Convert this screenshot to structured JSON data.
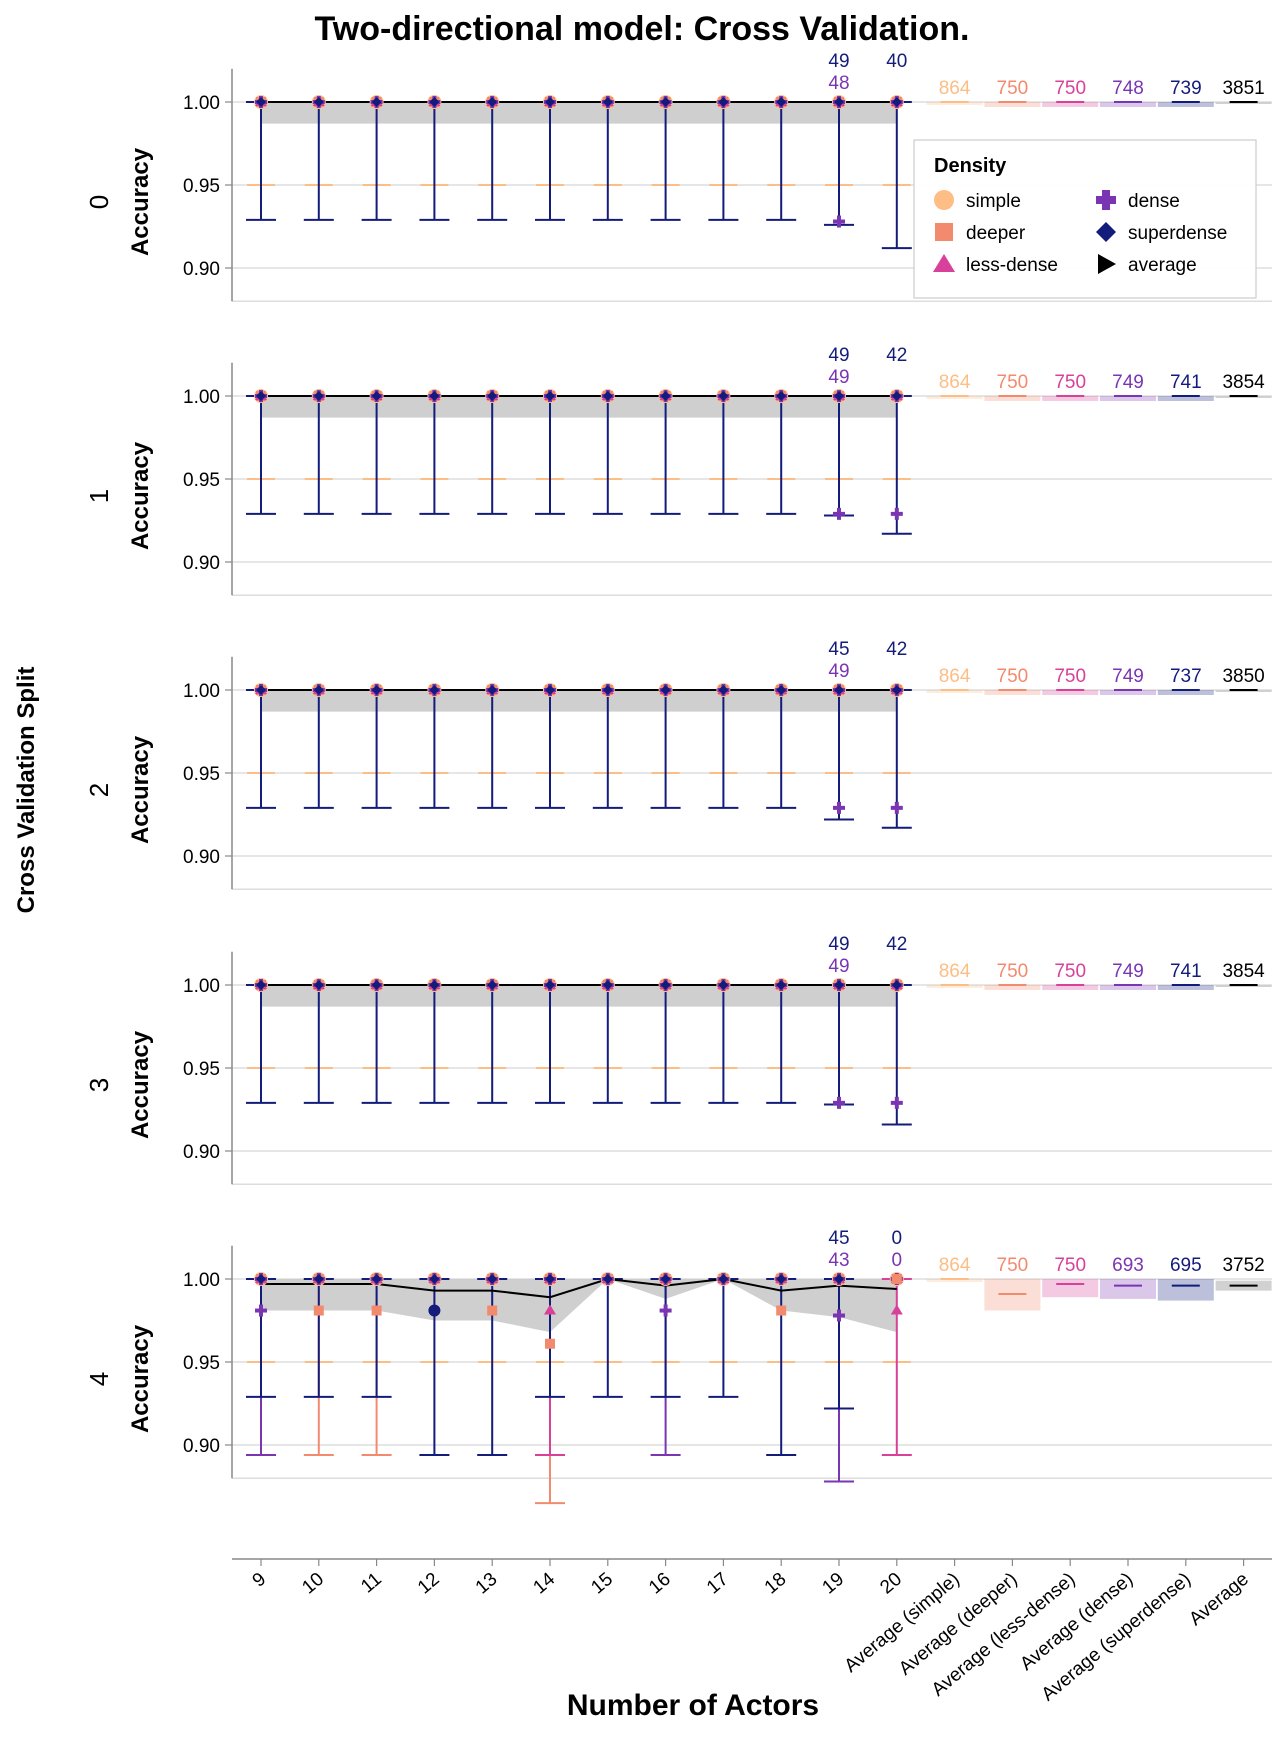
{
  "chart_data": {
    "type": "errorbar-faceted",
    "title": "Two-directional model: Cross Validation.",
    "xlabel": "Number of Actors",
    "row_label": "Cross Validation Split",
    "ylabel": "Accuracy",
    "ylim": [
      0.88,
      1.02
    ],
    "yticks": [
      "0.90",
      "0.95",
      "1.00"
    ],
    "x_categories": [
      "9",
      "10",
      "11",
      "12",
      "13",
      "14",
      "15",
      "16",
      "17",
      "18",
      "19",
      "20",
      "Average (simple)",
      "Average (deeper)",
      "Average (less-dense)",
      "Average (dense)",
      "Average (superdense)",
      "Average"
    ],
    "legend": {
      "title": "Density",
      "entries": [
        {
          "name": "simple",
          "color": "#fdbe85",
          "shape": "circle"
        },
        {
          "name": "deeper",
          "color": "#f28b6e",
          "shape": "square"
        },
        {
          "name": "less-dense",
          "color": "#d8419a",
          "shape": "triangle-up"
        },
        {
          "name": "dense",
          "color": "#7a35b3",
          "shape": "cross"
        },
        {
          "name": "superdense",
          "color": "#131c7a",
          "shape": "diamond"
        },
        {
          "name": "average",
          "color": "#000000",
          "shape": "triangle-right"
        }
      ]
    },
    "colors": {
      "simple": "#fdbe85",
      "deeper": "#f28b6e",
      "less-dense": "#d8419a",
      "dense": "#7a35b3",
      "superdense": "#131c7a",
      "average": "#000000",
      "band": "#cccccc",
      "grid": "#dddddd"
    },
    "facets": [
      {
        "split": "0",
        "counts_19": [
          "49",
          "48"
        ],
        "counts_20": [
          "40"
        ],
        "avg_counts": [
          "864",
          "750",
          "750",
          "748",
          "739",
          "3851"
        ],
        "average_line": [
          1,
          1,
          1,
          1,
          1,
          1,
          1,
          1,
          1,
          1,
          1,
          1
        ],
        "band_low": [
          0.987,
          0.987,
          0.987,
          0.987,
          0.987,
          0.987,
          0.987,
          0.987,
          0.987,
          0.987,
          0.987,
          0.987
        ],
        "errorbars": [
          {
            "x": "9",
            "series": "superdense",
            "low": 0.929,
            "high": 1.0
          },
          {
            "x": "10",
            "series": "superdense",
            "low": 0.929,
            "high": 1.0
          },
          {
            "x": "11",
            "series": "superdense",
            "low": 0.929,
            "high": 1.0
          },
          {
            "x": "12",
            "series": "superdense",
            "low": 0.929,
            "high": 1.0
          },
          {
            "x": "13",
            "series": "superdense",
            "low": 0.929,
            "high": 1.0
          },
          {
            "x": "14",
            "series": "superdense",
            "low": 0.929,
            "high": 1.0
          },
          {
            "x": "15",
            "series": "superdense",
            "low": 0.929,
            "high": 1.0
          },
          {
            "x": "16",
            "series": "superdense",
            "low": 0.929,
            "high": 1.0
          },
          {
            "x": "17",
            "series": "superdense",
            "low": 0.929,
            "high": 1.0
          },
          {
            "x": "18",
            "series": "superdense",
            "low": 0.929,
            "high": 1.0
          },
          {
            "x": "19",
            "series": "superdense",
            "low": 0.926,
            "high": 1.0
          },
          {
            "x": "20",
            "series": "superdense",
            "low": 0.912,
            "high": 1.0
          }
        ],
        "points": [
          {
            "x": "19",
            "series": "dense",
            "y": 0.928
          }
        ]
      },
      {
        "split": "1",
        "counts_19": [
          "49",
          "49"
        ],
        "counts_20": [
          "42"
        ],
        "avg_counts": [
          "864",
          "750",
          "750",
          "749",
          "741",
          "3854"
        ],
        "average_line": [
          1,
          1,
          1,
          1,
          1,
          1,
          1,
          1,
          1,
          1,
          1,
          1
        ],
        "band_low": [
          0.987,
          0.987,
          0.987,
          0.987,
          0.987,
          0.987,
          0.987,
          0.987,
          0.987,
          0.987,
          0.987,
          0.987
        ],
        "errorbars": [
          {
            "x": "9",
            "series": "superdense",
            "low": 0.929,
            "high": 1.0
          },
          {
            "x": "10",
            "series": "superdense",
            "low": 0.929,
            "high": 1.0
          },
          {
            "x": "11",
            "series": "superdense",
            "low": 0.929,
            "high": 1.0
          },
          {
            "x": "12",
            "series": "superdense",
            "low": 0.929,
            "high": 1.0
          },
          {
            "x": "13",
            "series": "superdense",
            "low": 0.929,
            "high": 1.0
          },
          {
            "x": "14",
            "series": "superdense",
            "low": 0.929,
            "high": 1.0
          },
          {
            "x": "15",
            "series": "superdense",
            "low": 0.929,
            "high": 1.0
          },
          {
            "x": "16",
            "series": "superdense",
            "low": 0.929,
            "high": 1.0
          },
          {
            "x": "17",
            "series": "superdense",
            "low": 0.929,
            "high": 1.0
          },
          {
            "x": "18",
            "series": "superdense",
            "low": 0.929,
            "high": 1.0
          },
          {
            "x": "19",
            "series": "superdense",
            "low": 0.928,
            "high": 1.0
          },
          {
            "x": "20",
            "series": "superdense",
            "low": 0.917,
            "high": 1.0
          }
        ],
        "points": [
          {
            "x": "19",
            "series": "dense",
            "y": 0.929
          },
          {
            "x": "20",
            "series": "dense",
            "y": 0.929
          }
        ]
      },
      {
        "split": "2",
        "counts_19": [
          "45",
          "49"
        ],
        "counts_20": [
          "42"
        ],
        "avg_counts": [
          "864",
          "750",
          "750",
          "749",
          "737",
          "3850"
        ],
        "average_line": [
          1,
          1,
          1,
          1,
          1,
          1,
          1,
          1,
          1,
          1,
          1,
          1
        ],
        "band_low": [
          0.987,
          0.987,
          0.987,
          0.987,
          0.987,
          0.987,
          0.987,
          0.987,
          0.987,
          0.987,
          0.987,
          0.987
        ],
        "errorbars": [
          {
            "x": "9",
            "series": "superdense",
            "low": 0.929,
            "high": 1.0
          },
          {
            "x": "10",
            "series": "superdense",
            "low": 0.929,
            "high": 1.0
          },
          {
            "x": "11",
            "series": "superdense",
            "low": 0.929,
            "high": 1.0
          },
          {
            "x": "12",
            "series": "superdense",
            "low": 0.929,
            "high": 1.0
          },
          {
            "x": "13",
            "series": "superdense",
            "low": 0.929,
            "high": 1.0
          },
          {
            "x": "14",
            "series": "superdense",
            "low": 0.929,
            "high": 1.0
          },
          {
            "x": "15",
            "series": "superdense",
            "low": 0.929,
            "high": 1.0
          },
          {
            "x": "16",
            "series": "superdense",
            "low": 0.929,
            "high": 1.0
          },
          {
            "x": "17",
            "series": "superdense",
            "low": 0.929,
            "high": 1.0
          },
          {
            "x": "18",
            "series": "superdense",
            "low": 0.929,
            "high": 1.0
          },
          {
            "x": "19",
            "series": "superdense",
            "low": 0.922,
            "high": 1.0
          },
          {
            "x": "20",
            "series": "superdense",
            "low": 0.917,
            "high": 1.0
          }
        ],
        "points": [
          {
            "x": "19",
            "series": "dense",
            "y": 0.929
          },
          {
            "x": "20",
            "series": "dense",
            "y": 0.929
          }
        ]
      },
      {
        "split": "3",
        "counts_19": [
          "49",
          "49"
        ],
        "counts_20": [
          "42"
        ],
        "avg_counts": [
          "864",
          "750",
          "750",
          "749",
          "741",
          "3854"
        ],
        "average_line": [
          1,
          1,
          1,
          1,
          1,
          1,
          1,
          1,
          1,
          1,
          1,
          1
        ],
        "band_low": [
          0.987,
          0.987,
          0.987,
          0.987,
          0.987,
          0.987,
          0.987,
          0.987,
          0.987,
          0.987,
          0.987,
          0.987
        ],
        "errorbars": [
          {
            "x": "9",
            "series": "superdense",
            "low": 0.929,
            "high": 1.0
          },
          {
            "x": "10",
            "series": "superdense",
            "low": 0.929,
            "high": 1.0
          },
          {
            "x": "11",
            "series": "superdense",
            "low": 0.929,
            "high": 1.0
          },
          {
            "x": "12",
            "series": "superdense",
            "low": 0.929,
            "high": 1.0
          },
          {
            "x": "13",
            "series": "superdense",
            "low": 0.929,
            "high": 1.0
          },
          {
            "x": "14",
            "series": "superdense",
            "low": 0.929,
            "high": 1.0
          },
          {
            "x": "15",
            "series": "superdense",
            "low": 0.929,
            "high": 1.0
          },
          {
            "x": "16",
            "series": "superdense",
            "low": 0.929,
            "high": 1.0
          },
          {
            "x": "17",
            "series": "superdense",
            "low": 0.929,
            "high": 1.0
          },
          {
            "x": "18",
            "series": "superdense",
            "low": 0.929,
            "high": 1.0
          },
          {
            "x": "19",
            "series": "superdense",
            "low": 0.928,
            "high": 1.0
          },
          {
            "x": "20",
            "series": "superdense",
            "low": 0.916,
            "high": 1.0
          }
        ],
        "points": [
          {
            "x": "19",
            "series": "dense",
            "y": 0.929
          },
          {
            "x": "20",
            "series": "dense",
            "y": 0.929
          }
        ]
      },
      {
        "split": "4",
        "counts_19": [
          "45",
          "43"
        ],
        "counts_20": [
          "0",
          "0"
        ],
        "avg_counts": [
          "864",
          "750",
          "750",
          "693",
          "695",
          "3752"
        ],
        "average_line": [
          0.997,
          0.997,
          0.997,
          0.993,
          0.993,
          0.989,
          1.0,
          0.996,
          1.0,
          0.993,
          0.996,
          0.994
        ],
        "band_low": [
          0.981,
          0.981,
          0.981,
          0.975,
          0.975,
          0.968,
          1.0,
          0.988,
          1.0,
          0.981,
          0.977,
          0.968
        ],
        "errorbars": [
          {
            "x": "9",
            "series": "dense",
            "low": 0.894,
            "high": 1.0
          },
          {
            "x": "9",
            "series": "superdense",
            "low": 0.929,
            "high": 1.0
          },
          {
            "x": "10",
            "series": "deeper",
            "low": 0.894,
            "high": 1.0
          },
          {
            "x": "10",
            "series": "superdense",
            "low": 0.929,
            "high": 1.0
          },
          {
            "x": "11",
            "series": "deeper",
            "low": 0.894,
            "high": 1.0
          },
          {
            "x": "11",
            "series": "superdense",
            "low": 0.929,
            "high": 1.0
          },
          {
            "x": "12",
            "series": "superdense",
            "low": 0.894,
            "high": 1.0
          },
          {
            "x": "13",
            "series": "superdense",
            "low": 0.894,
            "high": 1.0
          },
          {
            "x": "14",
            "series": "deeper",
            "low": 0.865,
            "high": 1.0
          },
          {
            "x": "14",
            "series": "less-dense",
            "low": 0.894,
            "high": 1.0
          },
          {
            "x": "14",
            "series": "superdense",
            "low": 0.929,
            "high": 1.0
          },
          {
            "x": "15",
            "series": "superdense",
            "low": 0.929,
            "high": 1.0
          },
          {
            "x": "16",
            "series": "dense",
            "low": 0.894,
            "high": 1.0
          },
          {
            "x": "16",
            "series": "superdense",
            "low": 0.929,
            "high": 1.0
          },
          {
            "x": "17",
            "series": "superdense",
            "low": 0.929,
            "high": 1.0
          },
          {
            "x": "18",
            "series": "superdense",
            "low": 0.894,
            "high": 1.0
          },
          {
            "x": "19",
            "series": "dense",
            "low": 0.878,
            "high": 1.0
          },
          {
            "x": "19",
            "series": "superdense",
            "low": 0.922,
            "high": 1.0
          },
          {
            "x": "20",
            "series": "less-dense",
            "low": 0.894,
            "high": 1.0
          }
        ],
        "points": [
          {
            "x": "9",
            "series": "dense",
            "y": 0.981
          },
          {
            "x": "10",
            "series": "deeper",
            "y": 0.981
          },
          {
            "x": "11",
            "series": "deeper",
            "y": 0.981
          },
          {
            "x": "12",
            "series": "superdense",
            "y": 0.981
          },
          {
            "x": "13",
            "series": "deeper",
            "y": 0.981
          },
          {
            "x": "14",
            "series": "less-dense",
            "y": 0.981
          },
          {
            "x": "14",
            "series": "deeper",
            "y": 0.961
          },
          {
            "x": "16",
            "series": "dense",
            "y": 0.981
          },
          {
            "x": "18",
            "series": "deeper",
            "y": 0.981
          },
          {
            "x": "19",
            "series": "dense",
            "y": 0.978
          },
          {
            "x": "20",
            "series": "less-dense",
            "y": 0.981
          },
          {
            "x": "20",
            "series": "deeper",
            "y": 1.0
          }
        ],
        "average_bars": [
          {
            "series": "simple",
            "value": 1.0,
            "low": 0.999,
            "high": 1.0
          },
          {
            "series": "deeper",
            "value": 0.991,
            "low": 0.981,
            "high": 1.0
          },
          {
            "series": "less-dense",
            "value": 0.997,
            "low": 0.989,
            "high": 1.0
          },
          {
            "series": "dense",
            "value": 0.996,
            "low": 0.988,
            "high": 1.0
          },
          {
            "series": "superdense",
            "value": 0.996,
            "low": 0.987,
            "high": 1.0
          },
          {
            "series": "average",
            "value": 0.996,
            "low": 0.993,
            "high": 0.999
          }
        ]
      }
    ]
  }
}
